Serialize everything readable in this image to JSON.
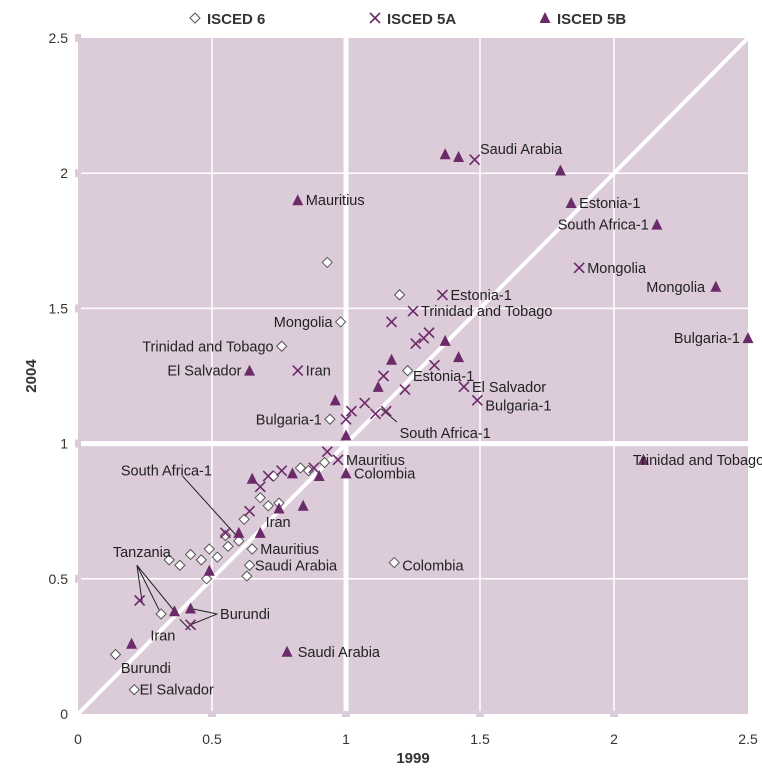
{
  "chart_data": {
    "type": "scatter",
    "title": "",
    "xlabel": "1999",
    "ylabel": "2004",
    "xlim": [
      0,
      2.5
    ],
    "ylim": [
      0,
      2.5
    ],
    "x_ticks": [
      "0",
      "0.5",
      "1",
      "1.5",
      "2",
      "2.5"
    ],
    "y_ticks": [
      "0",
      "0.5",
      "1",
      "1.5",
      "2",
      "2.5"
    ],
    "grid": true,
    "diagonal_reference_line": true,
    "legend_position": "top",
    "colors": {
      "plot_bg": "#dccbd9",
      "marker": "#6b2a68",
      "diamond_fill": "#ffffff",
      "diamond_stroke": "#555555",
      "grid": "#ffffff"
    },
    "series": [
      {
        "name": "ISCED 6",
        "marker": "diamond",
        "points": [
          [
            0.14,
            0.22
          ],
          [
            0.21,
            0.09
          ],
          [
            0.31,
            0.37
          ],
          [
            0.34,
            0.57
          ],
          [
            0.38,
            0.55
          ],
          [
            0.42,
            0.59
          ],
          [
            0.46,
            0.57
          ],
          [
            0.48,
            0.5
          ],
          [
            0.49,
            0.61
          ],
          [
            0.52,
            0.58
          ],
          [
            0.55,
            0.66
          ],
          [
            0.56,
            0.62
          ],
          [
            0.6,
            0.64
          ],
          [
            0.62,
            0.72
          ],
          [
            0.63,
            0.51
          ],
          [
            0.64,
            0.55
          ],
          [
            0.65,
            0.61
          ],
          [
            0.68,
            0.8
          ],
          [
            0.71,
            0.77
          ],
          [
            0.73,
            0.88
          ],
          [
            0.75,
            0.78
          ],
          [
            0.76,
            1.36
          ],
          [
            0.83,
            0.91
          ],
          [
            0.86,
            0.9
          ],
          [
            0.92,
            0.93
          ],
          [
            0.93,
            1.67
          ],
          [
            0.94,
            1.09
          ],
          [
            0.98,
            1.45
          ],
          [
            1.18,
            0.56
          ],
          [
            1.2,
            1.55
          ],
          [
            1.23,
            1.27
          ]
        ]
      },
      {
        "name": "ISCED 5A",
        "marker": "cross",
        "points": [
          [
            0.23,
            0.42
          ],
          [
            0.42,
            0.33
          ],
          [
            0.55,
            0.67
          ],
          [
            0.64,
            0.75
          ],
          [
            0.68,
            0.84
          ],
          [
            0.71,
            0.88
          ],
          [
            0.76,
            0.9
          ],
          [
            0.82,
            1.27
          ],
          [
            0.88,
            0.91
          ],
          [
            0.93,
            0.97
          ],
          [
            0.97,
            0.94
          ],
          [
            1.0,
            1.09
          ],
          [
            1.02,
            1.12
          ],
          [
            1.07,
            1.15
          ],
          [
            1.11,
            1.11
          ],
          [
            1.14,
            1.25
          ],
          [
            1.15,
            1.12
          ],
          [
            1.17,
            1.45
          ],
          [
            1.22,
            1.2
          ],
          [
            1.25,
            1.49
          ],
          [
            1.26,
            1.37
          ],
          [
            1.29,
            1.39
          ],
          [
            1.31,
            1.41
          ],
          [
            1.33,
            1.29
          ],
          [
            1.36,
            1.55
          ],
          [
            1.44,
            1.21
          ],
          [
            1.48,
            2.05
          ],
          [
            1.49,
            1.16
          ],
          [
            1.87,
            1.65
          ]
        ]
      },
      {
        "name": "ISCED 5B",
        "marker": "triangle",
        "points": [
          [
            0.2,
            0.26
          ],
          [
            0.36,
            0.38
          ],
          [
            0.42,
            0.39
          ],
          [
            0.49,
            0.53
          ],
          [
            0.6,
            0.67
          ],
          [
            0.64,
            1.27
          ],
          [
            0.65,
            0.87
          ],
          [
            0.68,
            0.67
          ],
          [
            0.75,
            0.76
          ],
          [
            0.78,
            0.23
          ],
          [
            0.8,
            0.89
          ],
          [
            0.82,
            1.9
          ],
          [
            0.84,
            0.77
          ],
          [
            0.9,
            0.88
          ],
          [
            0.96,
            1.16
          ],
          [
            1.0,
            0.89
          ],
          [
            1.0,
            1.03
          ],
          [
            1.12,
            1.21
          ],
          [
            1.17,
            1.31
          ],
          [
            1.37,
            1.38
          ],
          [
            1.37,
            2.07
          ],
          [
            1.42,
            2.06
          ],
          [
            1.42,
            1.32
          ],
          [
            1.8,
            2.01
          ],
          [
            1.84,
            1.89
          ],
          [
            2.11,
            0.94
          ],
          [
            2.16,
            1.81
          ],
          [
            2.38,
            1.58
          ],
          [
            2.5,
            1.39
          ]
        ]
      }
    ],
    "annotations": [
      {
        "text": "Saudi Arabia",
        "x": 1.5,
        "y": 2.09,
        "anchor": "start"
      },
      {
        "text": "Mauritius",
        "x": 0.85,
        "y": 1.9,
        "anchor": "start"
      },
      {
        "text": "Estonia-1",
        "x": 1.87,
        "y": 1.89,
        "anchor": "start"
      },
      {
        "text": "South Africa-1",
        "x": 2.13,
        "y": 1.81,
        "anchor": "end"
      },
      {
        "text": "Mongolia",
        "x": 1.9,
        "y": 1.65,
        "anchor": "start"
      },
      {
        "text": "Mongolia",
        "x": 2.34,
        "y": 1.58,
        "anchor": "end"
      },
      {
        "text": "Mongolia",
        "x": 0.95,
        "y": 1.45,
        "anchor": "end"
      },
      {
        "text": "Estonia-1",
        "x": 1.39,
        "y": 1.55,
        "anchor": "start"
      },
      {
        "text": "Trinidad and Tobago",
        "x": 1.28,
        "y": 1.49,
        "anchor": "start"
      },
      {
        "text": "Trinidad and Tobago",
        "x": 0.73,
        "y": 1.36,
        "anchor": "end"
      },
      {
        "text": "Bulgaria-1",
        "x": 2.47,
        "y": 1.39,
        "anchor": "end"
      },
      {
        "text": "El Salvador",
        "x": 0.61,
        "y": 1.27,
        "anchor": "end"
      },
      {
        "text": "Iran",
        "x": 0.85,
        "y": 1.27,
        "anchor": "start"
      },
      {
        "text": "Estonia-1",
        "x": 1.25,
        "y": 1.25,
        "anchor": "start"
      },
      {
        "text": "El Salvador",
        "x": 1.47,
        "y": 1.21,
        "anchor": "start"
      },
      {
        "text": "Bulgaria-1",
        "x": 1.52,
        "y": 1.14,
        "anchor": "start"
      },
      {
        "text": "Bulgaria-1",
        "x": 0.91,
        "y": 1.09,
        "anchor": "end"
      },
      {
        "text": "South Africa-1",
        "x": 1.2,
        "y": 1.04,
        "anchor": "start"
      },
      {
        "text": "Mauritius",
        "x": 1.0,
        "y": 0.94,
        "anchor": "start"
      },
      {
        "text": "Colombia",
        "x": 1.03,
        "y": 0.89,
        "anchor": "start"
      },
      {
        "text": "Trinidad and Tobago",
        "x": 2.07,
        "y": 0.94,
        "anchor": "start"
      },
      {
        "text": "South Africa-1",
        "x": 0.16,
        "y": 0.9,
        "anchor": "start"
      },
      {
        "text": "Iran",
        "x": 0.7,
        "y": 0.71,
        "anchor": "start"
      },
      {
        "text": "Mauritius",
        "x": 0.68,
        "y": 0.61,
        "anchor": "start"
      },
      {
        "text": "Saudi Arabia",
        "x": 0.66,
        "y": 0.55,
        "anchor": "start"
      },
      {
        "text": "Colombia",
        "x": 1.21,
        "y": 0.55,
        "anchor": "start"
      },
      {
        "text": "Tanzania",
        "x": 0.13,
        "y": 0.6,
        "anchor": "start"
      },
      {
        "text": "Burundi",
        "x": 0.53,
        "y": 0.37,
        "anchor": "start"
      },
      {
        "text": "Iran",
        "x": 0.27,
        "y": 0.29,
        "anchor": "start"
      },
      {
        "text": "Saudi Arabia",
        "x": 0.82,
        "y": 0.23,
        "anchor": "start"
      },
      {
        "text": "Burundi",
        "x": 0.16,
        "y": 0.17,
        "anchor": "start"
      },
      {
        "text": "El Salvador",
        "x": 0.23,
        "y": 0.09,
        "anchor": "start"
      }
    ],
    "leader_lines": [
      [
        [
          0.22,
          0.55
        ],
        [
          0.31,
          0.37
        ]
      ],
      [
        [
          0.22,
          0.55
        ],
        [
          0.24,
          0.41
        ]
      ],
      [
        [
          0.22,
          0.55
        ],
        [
          0.36,
          0.38
        ]
      ],
      [
        [
          0.52,
          0.37
        ],
        [
          0.42,
          0.39
        ]
      ],
      [
        [
          0.52,
          0.37
        ],
        [
          0.42,
          0.33
        ]
      ],
      [
        [
          0.42,
          0.31
        ],
        [
          0.38,
          0.35
        ]
      ],
      [
        [
          0.39,
          0.88
        ],
        [
          0.6,
          0.65
        ]
      ],
      [
        [
          1.19,
          1.08
        ],
        [
          1.13,
          1.13
        ]
      ]
    ]
  }
}
